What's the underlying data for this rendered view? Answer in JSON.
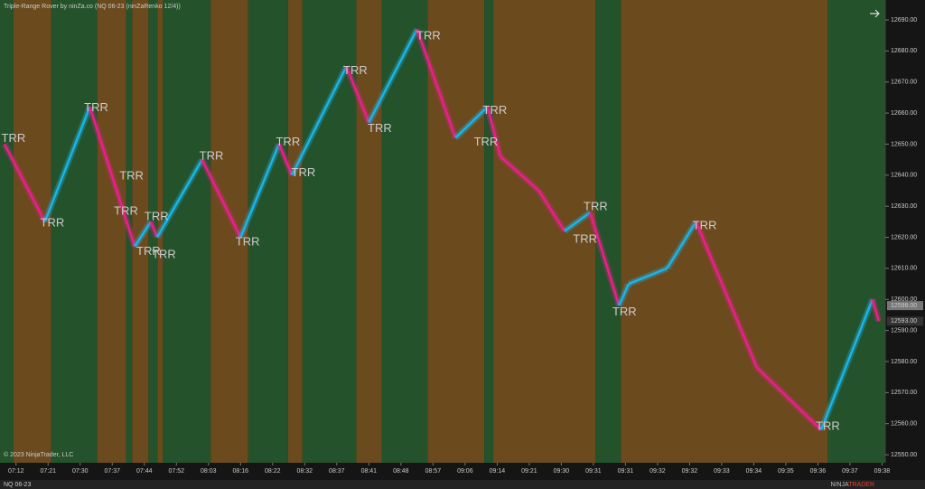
{
  "chart_data": {
    "type": "renko",
    "title": "Triple-Range Rover by ninZa.co (NQ 06-23 (ninZaRenko 12/4))",
    "copyright": "© 2023 NinjaTrader, LLC",
    "instrument_tab": "NQ 06-23",
    "logo": [
      "NINJA",
      "TRADER"
    ],
    "xlim": [
      0,
      276
    ],
    "ylim": [
      12547.4,
      12696.4
    ],
    "xticks": [
      {
        "value": 5,
        "label": "07:12"
      },
      {
        "value": 15,
        "label": "07:21"
      },
      {
        "value": 25,
        "label": "07:30"
      },
      {
        "value": 35,
        "label": "07:37"
      },
      {
        "value": 45,
        "label": "07:44"
      },
      {
        "value": 55,
        "label": "07:52"
      },
      {
        "value": 65,
        "label": "08:03"
      },
      {
        "value": 75,
        "label": "08:16"
      },
      {
        "value": 85,
        "label": "08:22"
      },
      {
        "value": 95,
        "label": "08:32"
      },
      {
        "value": 105,
        "label": "08:37"
      },
      {
        "value": 115,
        "label": "08:41"
      },
      {
        "value": 125,
        "label": "08:48"
      },
      {
        "value": 135,
        "label": "08:57"
      },
      {
        "value": 145,
        "label": "09:06"
      },
      {
        "value": 155,
        "label": "09:14"
      },
      {
        "value": 165,
        "label": "09:21"
      },
      {
        "value": 175,
        "label": "09:30"
      },
      {
        "value": 185,
        "label": "09:31"
      },
      {
        "value": 195,
        "label": "09:31"
      },
      {
        "value": 205,
        "label": "09:32"
      },
      {
        "value": 215,
        "label": "09:32"
      },
      {
        "value": 225,
        "label": "09:33"
      },
      {
        "value": 235,
        "label": "09:34"
      },
      {
        "value": 245,
        "label": "09:35"
      },
      {
        "value": 255,
        "label": "09:36"
      },
      {
        "value": 265,
        "label": "09:37"
      },
      {
        "value": 275,
        "label": "09:38"
      }
    ],
    "yticks": [
      {
        "value": 12550,
        "label": "12550.00"
      },
      {
        "value": 12560,
        "label": "12560.00"
      },
      {
        "value": 12570,
        "label": "12570.00"
      },
      {
        "value": 12580,
        "label": "12580.00"
      },
      {
        "value": 12590,
        "label": "12590.00"
      },
      {
        "value": 12600,
        "label": "12600.00"
      },
      {
        "value": 12610,
        "label": "12610.00"
      },
      {
        "value": 12620,
        "label": "12620.00"
      },
      {
        "value": 12630,
        "label": "12630.00"
      },
      {
        "value": 12640,
        "label": "12640.00"
      },
      {
        "value": 12650,
        "label": "12650.00"
      },
      {
        "value": 12660,
        "label": "12660.00"
      },
      {
        "value": 12670,
        "label": "12670.00"
      },
      {
        "value": 12680,
        "label": "12680.00"
      },
      {
        "value": 12690,
        "label": "12690.00"
      }
    ],
    "regimes": {
      "edges": [
        0,
        4.2,
        16,
        30.3,
        39.3,
        41.2,
        46.3,
        49.1,
        50.8,
        65.7,
        77.4,
        89.8,
        94.3,
        111.1,
        119,
        133.3,
        151,
        153.8,
        185.7,
        193.6,
        258.1,
        276
      ],
      "colors": [
        "#24522a",
        "#6b4a1e",
        "#24522a",
        "#6b4a1e",
        "#24522a",
        "#6b4a1e",
        "#24522a",
        "#6b4a1e",
        "#24522a",
        "#6b4a1e",
        "#24522a",
        "#6b4a1e",
        "#24522a",
        "#6b4a1e",
        "#24522a",
        "#6b4a1e",
        "#24522a",
        "#6b4a1e",
        "#24522a",
        "#6b4a1e",
        "#24522a"
      ]
    },
    "up_color": "#1ab4e8",
    "down_color": "#e8208a",
    "x": [
      1.4,
      14,
      28,
      42,
      47,
      49,
      63,
      75,
      87,
      91,
      108,
      115,
      130,
      142,
      152,
      156,
      168,
      176,
      184,
      193,
      196,
      208,
      217,
      236,
      256,
      272,
      274
    ],
    "values": [
      12650,
      12625,
      12662,
      12617,
      12625,
      12620,
      12645,
      12620,
      12650,
      12640,
      12675,
      12657,
      12687,
      12652,
      12662,
      12646,
      12635,
      12622,
      12628,
      12598,
      12605,
      12610,
      12625,
      12578,
      12558,
      12600,
      12593
    ],
    "annotations": [
      {
        "text": "TRR",
        "x": 4.2,
        "y": 12651.7,
        "color": "#f07ab0"
      },
      {
        "text": "TRR",
        "x": 30,
        "y": 12661.6,
        "color": "#f07ab0"
      },
      {
        "text": "TRR",
        "x": 41,
        "y": 12639.7,
        "color": "#f07ab0"
      },
      {
        "text": "TRR",
        "x": 48.8,
        "y": 12626.5,
        "color": "#f07ab0"
      },
      {
        "text": "TRR",
        "x": 65.9,
        "y": 12646.1,
        "color": "#f07ab0"
      },
      {
        "text": "TRR",
        "x": 89.8,
        "y": 12650.5,
        "color": "#f07ab0"
      },
      {
        "text": "TRR",
        "x": 110.8,
        "y": 12673.6,
        "color": "#f07ab0"
      },
      {
        "text": "TRR",
        "x": 133.6,
        "y": 12684.7,
        "color": "#f07ab0"
      },
      {
        "text": "TRR",
        "x": 154.3,
        "y": 12660.8,
        "color": "#f07ab0"
      },
      {
        "text": "TRR",
        "x": 185.7,
        "y": 12629.8,
        "color": "#f07ab0"
      },
      {
        "text": "TRR",
        "x": 219.7,
        "y": 12623.6,
        "color": "#f07ab0"
      },
      {
        "text": "TRR",
        "x": 16.3,
        "y": 12624.5,
        "color": "#3ab8e8"
      },
      {
        "text": "TRR",
        "x": 39.3,
        "y": 12628.3,
        "color": "#3ab8e8"
      },
      {
        "text": "TRR",
        "x": 46.3,
        "y": 12615.4,
        "color": "#3ab8e8"
      },
      {
        "text": "TRR",
        "x": 51.1,
        "y": 12614.3,
        "color": "#3ab8e8"
      },
      {
        "text": "TRR",
        "x": 77.2,
        "y": 12618.4,
        "color": "#3ab8e8"
      },
      {
        "text": "TRR",
        "x": 94.6,
        "y": 12640.6,
        "color": "#3ab8e8"
      },
      {
        "text": "TRR",
        "x": 118.4,
        "y": 12654.9,
        "color": "#3ab8e8"
      },
      {
        "text": "TRR",
        "x": 151.5,
        "y": 12650.5,
        "color": "#3ab8e8"
      },
      {
        "text": "TRR",
        "x": 182.4,
        "y": 12619.2,
        "color": "#3ab8e8"
      },
      {
        "text": "TRR",
        "x": 194.7,
        "y": 12595.8,
        "color": "#3ab8e8"
      },
      {
        "text": "TRR",
        "x": 258.1,
        "y": 12559.0,
        "color": "#3ab8e8"
      }
    ],
    "price_markers": [
      {
        "value": 12598,
        "label": "12598.00",
        "color": "#777"
      },
      {
        "value": 12593,
        "label": "12593.00",
        "color": "#333"
      }
    ]
  }
}
